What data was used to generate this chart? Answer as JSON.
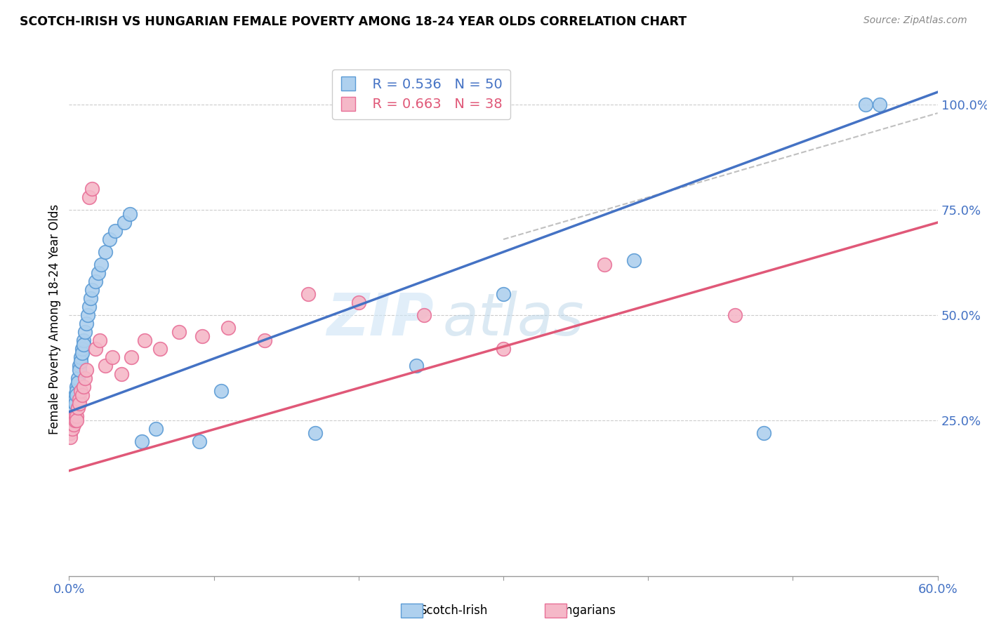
{
  "title": "SCOTCH-IRISH VS HUNGARIAN FEMALE POVERTY AMONG 18-24 YEAR OLDS CORRELATION CHART",
  "source": "Source: ZipAtlas.com",
  "ylabel": "Female Poverty Among 18-24 Year Olds",
  "xmin": 0.0,
  "xmax": 0.6,
  "ymin": -0.12,
  "ymax": 1.1,
  "yticks": [
    0.25,
    0.5,
    0.75,
    1.0
  ],
  "ytick_labels": [
    "25.0%",
    "50.0%",
    "75.0%",
    "100.0%"
  ],
  "watermark_zip": "ZIP",
  "watermark_atlas": "atlas",
  "scotch_irish_color": "#aed0ee",
  "hungarian_color": "#f5b8c8",
  "scotch_irish_edge_color": "#5b9bd5",
  "hungarian_edge_color": "#e87098",
  "scotch_irish_line_color": "#4472c4",
  "hungarian_line_color": "#e05878",
  "legend_scotch_r": "R = 0.536",
  "legend_scotch_n": "N = 50",
  "legend_hungarian_r": "R = 0.663",
  "legend_hungarian_n": "N = 38",
  "scotch_irish_x": [
    0.001,
    0.001,
    0.002,
    0.002,
    0.002,
    0.003,
    0.003,
    0.003,
    0.003,
    0.004,
    0.004,
    0.004,
    0.005,
    0.005,
    0.005,
    0.006,
    0.006,
    0.007,
    0.007,
    0.008,
    0.008,
    0.009,
    0.009,
    0.01,
    0.01,
    0.011,
    0.012,
    0.013,
    0.014,
    0.015,
    0.016,
    0.018,
    0.02,
    0.022,
    0.025,
    0.028,
    0.032,
    0.038,
    0.042,
    0.05,
    0.06,
    0.09,
    0.105,
    0.17,
    0.24,
    0.3,
    0.39,
    0.48,
    0.55,
    0.56
  ],
  "scotch_irish_y": [
    0.26,
    0.25,
    0.28,
    0.27,
    0.26,
    0.3,
    0.29,
    0.28,
    0.27,
    0.31,
    0.3,
    0.29,
    0.33,
    0.32,
    0.31,
    0.35,
    0.34,
    0.38,
    0.37,
    0.4,
    0.39,
    0.42,
    0.41,
    0.44,
    0.43,
    0.46,
    0.48,
    0.5,
    0.52,
    0.54,
    0.56,
    0.58,
    0.6,
    0.62,
    0.65,
    0.68,
    0.7,
    0.72,
    0.74,
    0.2,
    0.23,
    0.2,
    0.32,
    0.22,
    0.38,
    0.55,
    0.63,
    0.22,
    1.0,
    1.0
  ],
  "hungarian_x": [
    0.001,
    0.001,
    0.002,
    0.002,
    0.003,
    0.003,
    0.004,
    0.004,
    0.005,
    0.005,
    0.006,
    0.007,
    0.007,
    0.008,
    0.009,
    0.01,
    0.011,
    0.012,
    0.014,
    0.016,
    0.018,
    0.021,
    0.025,
    0.03,
    0.036,
    0.043,
    0.052,
    0.063,
    0.076,
    0.092,
    0.11,
    0.135,
    0.165,
    0.2,
    0.245,
    0.3,
    0.37,
    0.46
  ],
  "hungarian_y": [
    0.22,
    0.21,
    0.24,
    0.23,
    0.25,
    0.24,
    0.26,
    0.25,
    0.26,
    0.25,
    0.28,
    0.3,
    0.29,
    0.32,
    0.31,
    0.33,
    0.35,
    0.37,
    0.78,
    0.8,
    0.42,
    0.44,
    0.38,
    0.4,
    0.36,
    0.4,
    0.44,
    0.42,
    0.46,
    0.45,
    0.47,
    0.44,
    0.55,
    0.53,
    0.5,
    0.42,
    0.62,
    0.5
  ],
  "scotch_line_x0": 0.0,
  "scotch_line_y0": 0.27,
  "scotch_line_x1": 0.6,
  "scotch_line_y1": 1.03,
  "hungarian_line_x0": 0.0,
  "hungarian_line_y0": 0.13,
  "hungarian_line_x1": 0.6,
  "hungarian_line_y1": 0.72,
  "ref_line_x0": 0.3,
  "ref_line_y0": 0.68,
  "ref_line_x1": 0.6,
  "ref_line_y1": 0.98
}
